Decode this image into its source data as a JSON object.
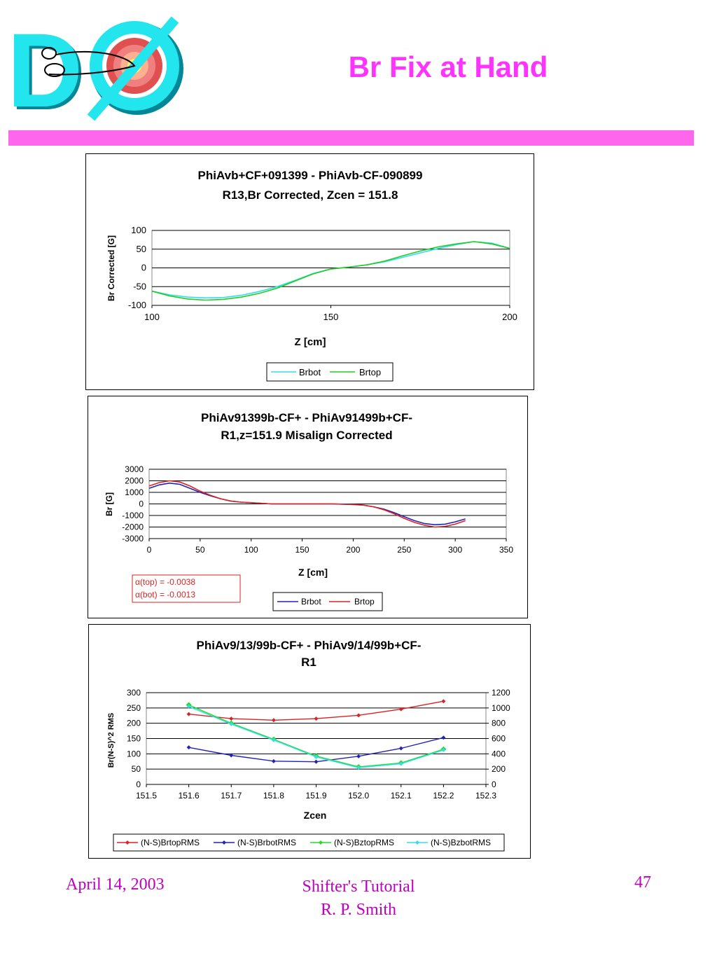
{
  "slide": {
    "title": "Br Fix at Hand",
    "accent_color": "#ff33ff",
    "bar_color": "#ff66ee",
    "logo": {
      "text": "DØ",
      "icon": "d0-experiment-logo"
    }
  },
  "footer": {
    "date": "April 14, 2003",
    "center_line1": "Shifter's Tutorial",
    "center_line2": "R. P. Smith",
    "page": "47",
    "color": "#c000c0"
  },
  "chart_data": [
    {
      "type": "line",
      "title_line1": "PhiAvb+CF+091399 - PhiAvb-CF-090899",
      "title_line2": "R13,Br Corrected, Zcen = 151.8",
      "xlabel": "Z [cm]",
      "ylabel": "Br Corrected [G]",
      "xlim": [
        100,
        200
      ],
      "ylim": [
        -100,
        100
      ],
      "xticks": [
        "100",
        "150",
        "200"
      ],
      "yticks": [
        "100",
        "50",
        "0",
        "-50",
        "-100"
      ],
      "grid": "horizontal",
      "legend": "bottom",
      "series": [
        {
          "name": "Brbot",
          "color": "#33ddee",
          "points": [
            [
              100,
              -62
            ],
            [
              105,
              -72
            ],
            [
              110,
              -78
            ],
            [
              115,
              -80
            ],
            [
              120,
              -79
            ],
            [
              125,
              -73
            ],
            [
              130,
              -63
            ],
            [
              135,
              -50
            ],
            [
              140,
              -33
            ],
            [
              145,
              -15
            ],
            [
              150,
              -3
            ],
            [
              155,
              2
            ],
            [
              160,
              8
            ],
            [
              165,
              16
            ],
            [
              170,
              28
            ],
            [
              175,
              40
            ],
            [
              180,
              52
            ],
            [
              185,
              62
            ],
            [
              190,
              70
            ],
            [
              195,
              66
            ],
            [
              200,
              52
            ]
          ]
        },
        {
          "name": "Brtop",
          "color": "#22cc22",
          "points": [
            [
              100,
              -62
            ],
            [
              105,
              -75
            ],
            [
              110,
              -83
            ],
            [
              115,
              -86
            ],
            [
              120,
              -84
            ],
            [
              125,
              -78
            ],
            [
              130,
              -68
            ],
            [
              135,
              -54
            ],
            [
              140,
              -35
            ],
            [
              145,
              -16
            ],
            [
              150,
              -3
            ],
            [
              155,
              2
            ],
            [
              160,
              8
            ],
            [
              165,
              18
            ],
            [
              170,
              32
            ],
            [
              175,
              45
            ],
            [
              180,
              56
            ],
            [
              185,
              64
            ],
            [
              190,
              70
            ],
            [
              195,
              64
            ],
            [
              200,
              52
            ]
          ]
        }
      ]
    },
    {
      "type": "line",
      "title_line1": "PhiAv91399b-CF+ - PhiAv91499b+CF-",
      "title_line2": "R1,z=151.9 Misalign Corrected",
      "xlabel": "Z [cm]",
      "ylabel": "Br [G]",
      "xlim": [
        0,
        350
      ],
      "ylim": [
        -3000,
        3000
      ],
      "xticks": [
        "0",
        "50",
        "100",
        "150",
        "200",
        "250",
        "300",
        "350"
      ],
      "yticks": [
        "3000",
        "2000",
        "1000",
        "0",
        "-1000",
        "-2000",
        "-3000"
      ],
      "grid": "horizontal",
      "legend": "bottom",
      "annotations": [
        "α(top) = -0.0038",
        "α(bot) = -0.0013"
      ],
      "series": [
        {
          "name": "Brbot",
          "color": "#2222bb",
          "points": [
            [
              0,
              1350
            ],
            [
              10,
              1650
            ],
            [
              20,
              1800
            ],
            [
              30,
              1700
            ],
            [
              40,
              1350
            ],
            [
              50,
              1000
            ],
            [
              60,
              700
            ],
            [
              70,
              450
            ],
            [
              80,
              250
            ],
            [
              90,
              150
            ],
            [
              100,
              100
            ],
            [
              110,
              50
            ],
            [
              120,
              0
            ],
            [
              150,
              0
            ],
            [
              180,
              0
            ],
            [
              200,
              -50
            ],
            [
              210,
              -100
            ],
            [
              220,
              -250
            ],
            [
              230,
              -450
            ],
            [
              240,
              -750
            ],
            [
              250,
              -1100
            ],
            [
              260,
              -1450
            ],
            [
              270,
              -1700
            ],
            [
              280,
              -1800
            ],
            [
              290,
              -1750
            ],
            [
              300,
              -1550
            ],
            [
              310,
              -1300
            ]
          ]
        },
        {
          "name": "Brtop",
          "color": "#dd2222",
          "points": [
            [
              0,
              1550
            ],
            [
              10,
              1850
            ],
            [
              20,
              2000
            ],
            [
              30,
              1900
            ],
            [
              40,
              1550
            ],
            [
              50,
              1100
            ],
            [
              60,
              750
            ],
            [
              70,
              450
            ],
            [
              80,
              250
            ],
            [
              90,
              150
            ],
            [
              100,
              100
            ],
            [
              110,
              50
            ],
            [
              120,
              0
            ],
            [
              150,
              0
            ],
            [
              180,
              0
            ],
            [
              200,
              -50
            ],
            [
              210,
              -100
            ],
            [
              220,
              -250
            ],
            [
              230,
              -500
            ],
            [
              240,
              -850
            ],
            [
              250,
              -1250
            ],
            [
              260,
              -1600
            ],
            [
              270,
              -1850
            ],
            [
              280,
              -2000
            ],
            [
              290,
              -1950
            ],
            [
              300,
              -1750
            ],
            [
              310,
              -1450
            ]
          ]
        }
      ]
    },
    {
      "type": "line",
      "title_line1": "PhiAv9/13/99b-CF+ - PhiAv9/14/99b+CF-",
      "title_line2": "R1",
      "xlabel": "Zcen",
      "ylabel": "Br(N-S)^2 RMS",
      "xlim": [
        151.5,
        152.3
      ],
      "ylim": [
        0,
        300
      ],
      "y2lim": [
        0,
        1200
      ],
      "xticks": [
        "151.5",
        "151.6",
        "151.7",
        "151.8",
        "151.9",
        "152.0",
        "152.1",
        "152.2",
        "152.3"
      ],
      "yticks": [
        "300",
        "250",
        "200",
        "150",
        "100",
        "50",
        "0"
      ],
      "y2ticks": [
        "1200",
        "1000",
        "800",
        "600",
        "400",
        "200",
        "0"
      ],
      "grid": "horizontal",
      "legend": "bottom",
      "series": [
        {
          "name": "(N-S)BrtopRMS",
          "color": "#dd2222",
          "axis": "left",
          "x": [
            151.6,
            151.7,
            151.8,
            151.9,
            152.0,
            152.1,
            152.2
          ],
          "values": [
            230,
            215,
            210,
            215,
            226,
            246,
            272
          ]
        },
        {
          "name": "(N-S)BrbotRMS",
          "color": "#2222bb",
          "axis": "left",
          "x": [
            151.6,
            151.7,
            151.8,
            151.9,
            152.0,
            152.1,
            152.2
          ],
          "values": [
            121,
            95,
            76,
            74,
            92,
            118,
            153
          ]
        },
        {
          "name": "(N-S)BztopRMS",
          "color": "#22dd22",
          "axis": "right",
          "x": [
            151.6,
            151.7,
            151.8,
            151.9,
            152.0,
            152.1,
            152.2
          ],
          "values": [
            1040,
            800,
            590,
            370,
            230,
            280,
            460
          ]
        },
        {
          "name": "(N-S)BzbotRMS",
          "color": "#33ddee",
          "axis": "right",
          "x": [
            151.6,
            151.7,
            151.8,
            151.9,
            152.0,
            152.1,
            152.2
          ],
          "values": [
            1020,
            790,
            580,
            360,
            220,
            270,
            450
          ]
        }
      ]
    }
  ]
}
